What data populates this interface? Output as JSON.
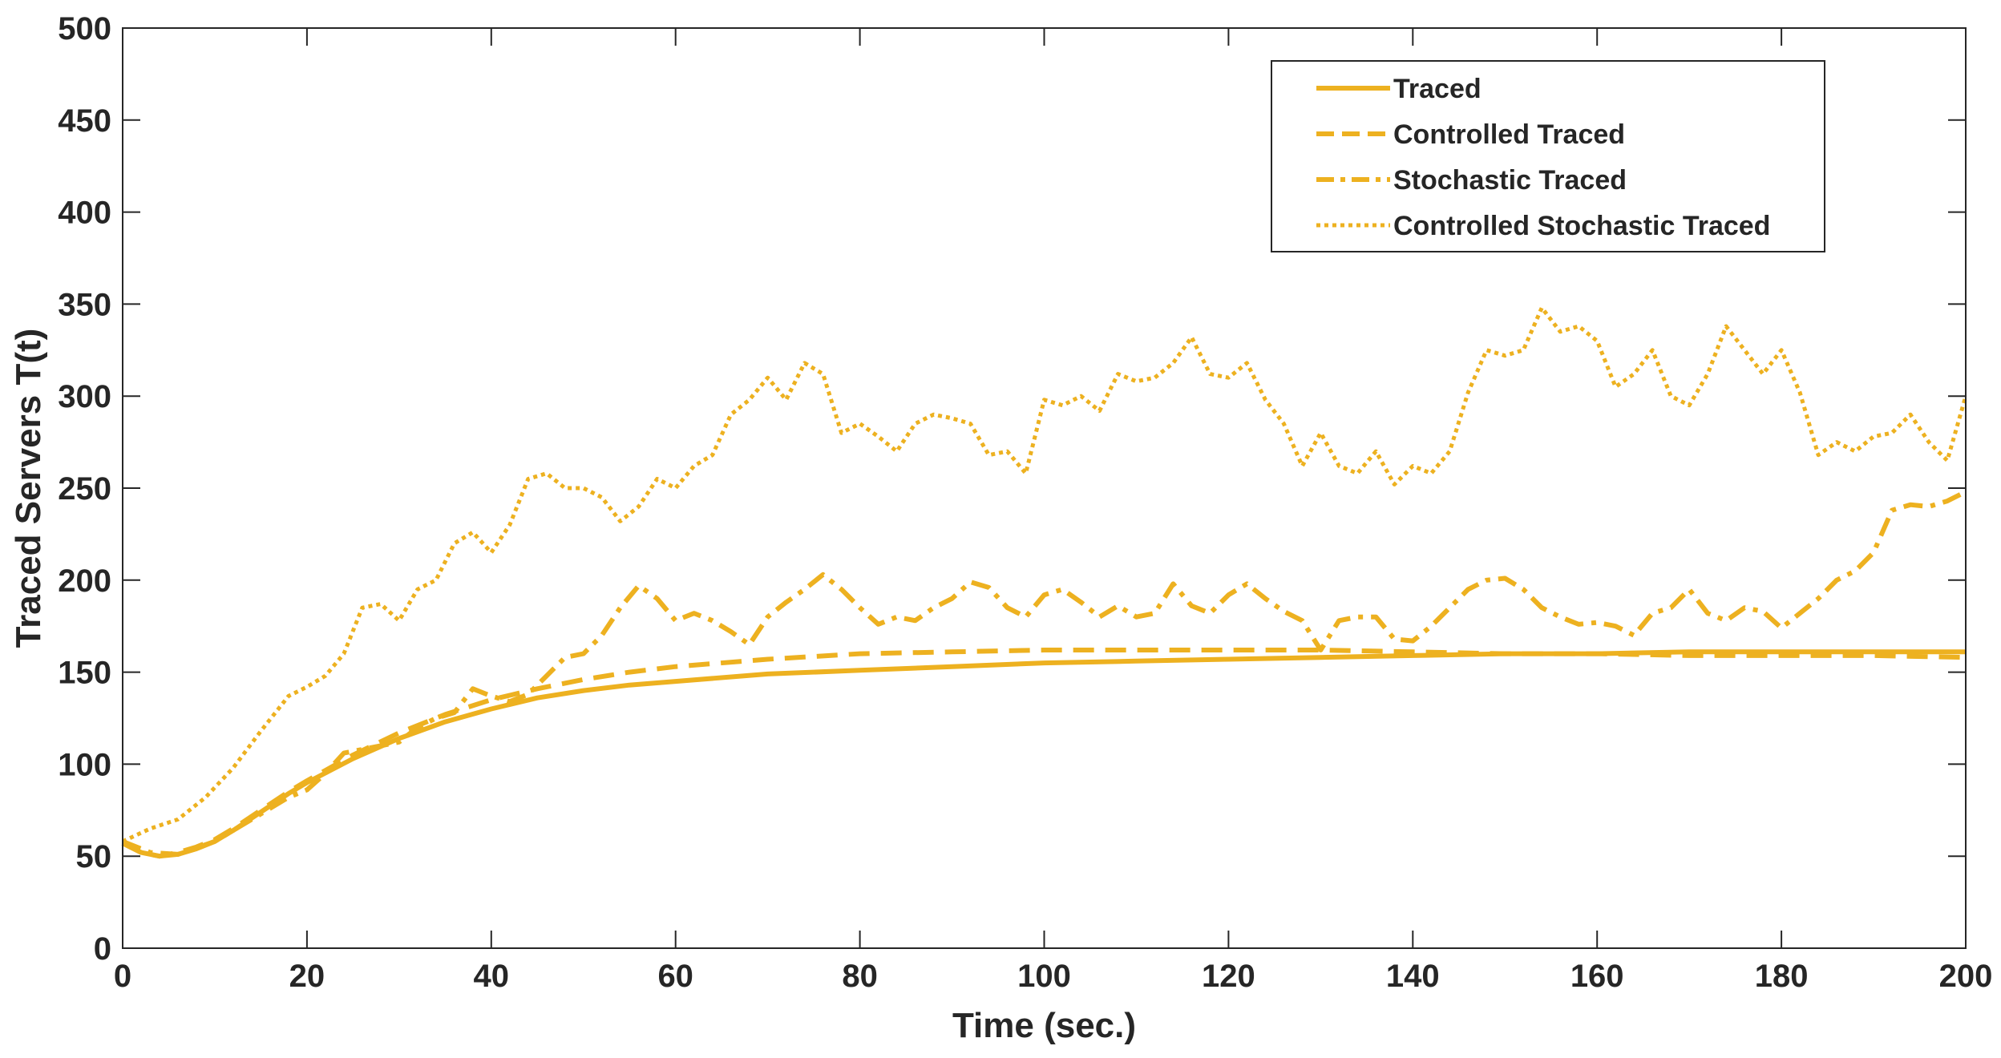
{
  "chart_data": {
    "type": "line",
    "title": "",
    "xlabel": "Time (sec.)",
    "ylabel": "Traced Servers T(t)",
    "xlim": [
      0,
      200
    ],
    "ylim": [
      0,
      500
    ],
    "xticks": [
      0,
      20,
      40,
      60,
      80,
      100,
      120,
      140,
      160,
      180,
      200
    ],
    "yticks": [
      0,
      50,
      100,
      150,
      200,
      250,
      300,
      350,
      400,
      450,
      500
    ],
    "grid": false,
    "legend_position": "top-right",
    "line_color": "#EDB120",
    "series": [
      {
        "name": "Traced",
        "style": "solid",
        "x": [
          0,
          2,
          4,
          6,
          8,
          10,
          12,
          15,
          18,
          20,
          25,
          30,
          35,
          40,
          45,
          50,
          55,
          60,
          70,
          80,
          90,
          100,
          110,
          120,
          130,
          140,
          150,
          160,
          170,
          180,
          190,
          200
        ],
        "y": [
          57,
          52,
          50,
          51,
          54,
          58,
          64,
          74,
          84,
          90,
          103,
          114,
          123,
          130,
          136,
          140,
          143,
          145,
          149,
          151,
          153,
          155,
          156,
          157,
          158,
          159,
          160,
          160,
          161,
          161,
          161,
          161
        ]
      },
      {
        "name": "Controlled Traced",
        "style": "dashed",
        "x": [
          0,
          2,
          4,
          6,
          8,
          10,
          12,
          15,
          18,
          20,
          25,
          30,
          35,
          40,
          45,
          50,
          55,
          60,
          70,
          80,
          90,
          100,
          110,
          120,
          130,
          140,
          150,
          160,
          170,
          180,
          190,
          200
        ],
        "y": [
          57,
          52,
          50,
          52,
          55,
          59,
          65,
          75,
          85,
          91,
          105,
          117,
          127,
          135,
          141,
          146,
          150,
          153,
          157,
          160,
          161,
          162,
          162,
          162,
          162,
          161,
          160,
          160,
          159,
          159,
          159,
          158
        ]
      },
      {
        "name": "Stochastic Traced",
        "style": "dashdot",
        "x": [
          0,
          3,
          6,
          10,
          14,
          18,
          20,
          22,
          24,
          26,
          28,
          30,
          32,
          34,
          36,
          38,
          40,
          42,
          44,
          46,
          48,
          50,
          52,
          54,
          56,
          58,
          60,
          62,
          64,
          66,
          68,
          70,
          72,
          74,
          76,
          78,
          80,
          82,
          84,
          86,
          88,
          90,
          92,
          94,
          96,
          98,
          100,
          102,
          104,
          106,
          108,
          110,
          112,
          114,
          116,
          118,
          120,
          122,
          124,
          126,
          128,
          130,
          132,
          134,
          136,
          138,
          140,
          142,
          144,
          146,
          148,
          150,
          152,
          154,
          156,
          158,
          160,
          162,
          164,
          166,
          168,
          170,
          172,
          174,
          176,
          178,
          180,
          182,
          184,
          186,
          188,
          190,
          192,
          194,
          196,
          198,
          200
        ],
        "y": [
          58,
          52,
          51,
          58,
          70,
          82,
          86,
          95,
          106,
          108,
          110,
          112,
          120,
          125,
          128,
          141,
          137,
          134,
          138,
          148,
          158,
          160,
          170,
          185,
          197,
          190,
          178,
          182,
          178,
          172,
          165,
          180,
          188,
          195,
          203,
          195,
          185,
          176,
          180,
          178,
          185,
          190,
          199,
          196,
          185,
          180,
          192,
          195,
          188,
          180,
          186,
          180,
          182,
          198,
          186,
          182,
          192,
          198,
          190,
          183,
          178,
          162,
          178,
          180,
          180,
          168,
          167,
          175,
          185,
          195,
          200,
          201,
          195,
          185,
          180,
          176,
          177,
          175,
          170,
          182,
          185,
          195,
          182,
          178,
          185,
          183,
          174,
          182,
          190,
          200,
          205,
          215,
          238,
          241,
          240,
          243,
          248
        ]
      },
      {
        "name": "Controlled Stochastic Traced",
        "style": "dotted",
        "x": [
          0,
          3,
          6,
          9,
          12,
          15,
          18,
          20,
          22,
          24,
          26,
          28,
          30,
          32,
          34,
          36,
          38,
          40,
          42,
          44,
          46,
          48,
          50,
          52,
          54,
          56,
          58,
          60,
          62,
          64,
          66,
          68,
          70,
          72,
          74,
          76,
          78,
          80,
          82,
          84,
          86,
          88,
          90,
          92,
          94,
          96,
          98,
          100,
          102,
          104,
          106,
          108,
          110,
          112,
          114,
          116,
          118,
          120,
          122,
          124,
          126,
          128,
          130,
          132,
          134,
          136,
          138,
          140,
          142,
          144,
          146,
          148,
          150,
          152,
          154,
          156,
          158,
          160,
          162,
          164,
          166,
          168,
          170,
          172,
          174,
          176,
          178,
          180,
          182,
          184,
          186,
          188,
          190,
          192,
          194,
          196,
          198,
          200
        ],
        "y": [
          58,
          65,
          70,
          82,
          98,
          118,
          137,
          142,
          148,
          160,
          185,
          187,
          178,
          195,
          200,
          220,
          226,
          215,
          230,
          255,
          258,
          250,
          250,
          245,
          232,
          240,
          255,
          250,
          262,
          268,
          290,
          298,
          310,
          298,
          318,
          312,
          280,
          285,
          278,
          270,
          285,
          290,
          288,
          285,
          268,
          270,
          258,
          298,
          295,
          300,
          292,
          312,
          308,
          310,
          318,
          332,
          312,
          310,
          318,
          298,
          285,
          262,
          280,
          262,
          258,
          270,
          252,
          262,
          258,
          270,
          302,
          325,
          322,
          325,
          348,
          335,
          338,
          330,
          305,
          312,
          325,
          300,
          295,
          312,
          338,
          325,
          312,
          325,
          302,
          268,
          275,
          270,
          278,
          280,
          290,
          275,
          265,
          300
        ]
      }
    ]
  }
}
